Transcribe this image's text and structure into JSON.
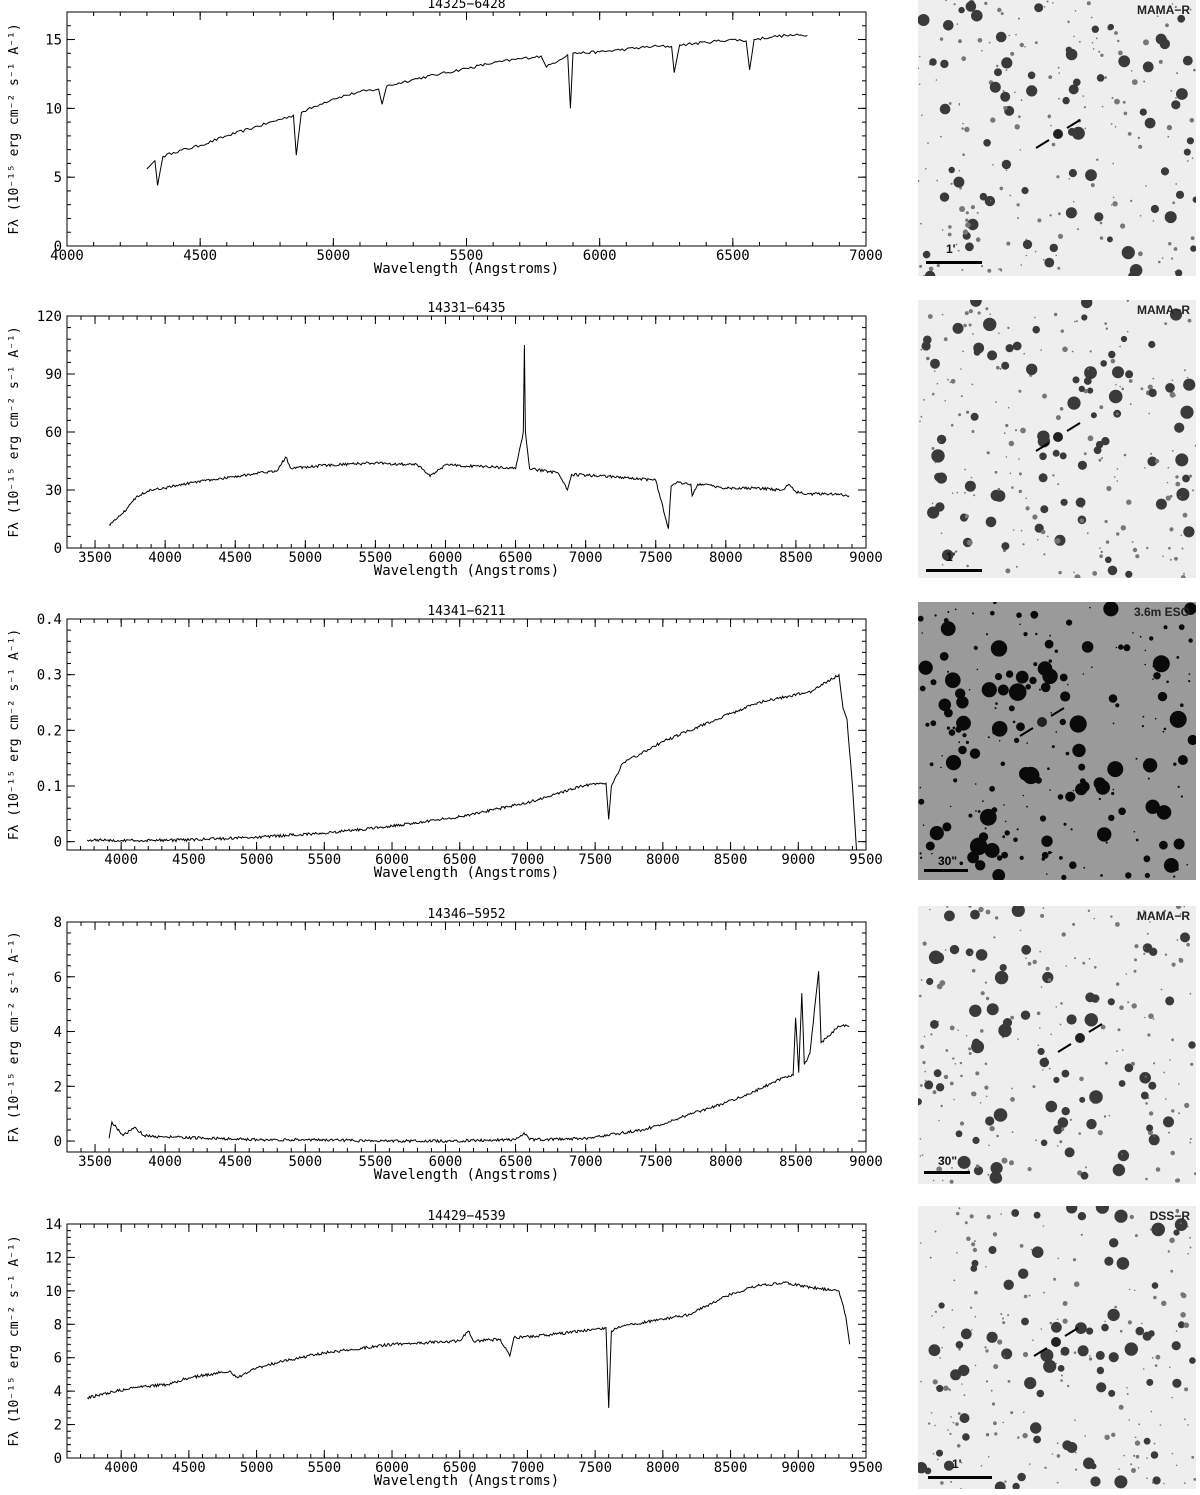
{
  "chart_data": [
    {
      "type": "line",
      "title": "14325−6428",
      "xlabel": "Wavelength (Angstroms)",
      "ylabel": "Fλ (10⁻¹⁵ erg cm⁻² s⁻¹ A⁻¹)",
      "xlim": [
        4000,
        7000
      ],
      "ylim": [
        0,
        17
      ],
      "xticks": [
        4000,
        4500,
        5000,
        5500,
        6000,
        6500,
        7000
      ],
      "yticks": [
        0,
        5,
        10,
        15
      ],
      "series": [
        {
          "x": [
            4300,
            4330,
            4340,
            4360,
            4400,
            4500,
            4600,
            4700,
            4800,
            4850,
            4861,
            4880,
            4950,
            5000,
            5100,
            5170,
            5183,
            5200,
            5300,
            5400,
            5500,
            5600,
            5700,
            5780,
            5800,
            5880,
            5890,
            5900,
            6000,
            6100,
            6200,
            6270,
            6280,
            6300,
            6400,
            6500,
            6550,
            6563,
            6580,
            6650,
            6700,
            6780
          ],
          "y": [
            5.6,
            6.2,
            4.4,
            6.5,
            6.8,
            7.3,
            8.0,
            8.6,
            9.2,
            9.5,
            6.6,
            9.7,
            10.3,
            10.7,
            11.2,
            11.4,
            10.3,
            11.6,
            12.1,
            12.5,
            12.9,
            13.3,
            13.6,
            13.8,
            13.0,
            13.9,
            10.0,
            14.0,
            14.1,
            14.3,
            14.5,
            14.5,
            12.6,
            14.6,
            14.8,
            15.0,
            14.9,
            12.8,
            15.0,
            15.2,
            15.3,
            15.3
          ]
        }
      ]
    },
    {
      "type": "line",
      "title": "14331−6435",
      "xlabel": "Wavelength (Angstroms)",
      "ylabel": "Fλ (10⁻¹⁵ erg cm⁻² s⁻¹ A⁻¹)",
      "xlim": [
        3300,
        9000
      ],
      "ylim": [
        0,
        120
      ],
      "xticks": [
        3500,
        4000,
        4500,
        5000,
        5500,
        6000,
        6500,
        7000,
        7500,
        8000,
        8500,
        9000
      ],
      "yticks": [
        0,
        30,
        60,
        90,
        120
      ],
      "series": [
        {
          "x": [
            3600,
            3700,
            3800,
            3900,
            4000,
            4200,
            4400,
            4600,
            4800,
            4861,
            4900,
            5000,
            5200,
            5500,
            5800,
            5890,
            6000,
            6300,
            6500,
            6555,
            6563,
            6570,
            6600,
            6800,
            6870,
            6900,
            7200,
            7500,
            7590,
            7610,
            7650,
            7750,
            7760,
            7800,
            8000,
            8200,
            8400,
            8450,
            8500,
            8600,
            8800,
            8880
          ],
          "y": [
            12,
            18,
            27,
            30,
            31,
            34,
            36,
            38,
            40,
            47,
            41,
            42,
            43,
            44,
            43,
            37,
            43,
            42,
            41,
            60,
            105,
            60,
            41,
            39,
            30,
            38,
            37,
            35,
            10,
            32,
            34,
            33,
            27,
            33,
            31,
            31,
            30,
            33,
            29,
            28,
            28,
            27
          ]
        }
      ]
    },
    {
      "type": "line",
      "title": "14341−6211",
      "xlabel": "Wavelength (Angstroms)",
      "ylabel": "Fλ (10⁻¹⁵ erg cm⁻² s⁻¹ A⁻¹)",
      "xlim": [
        3600,
        9500
      ],
      "ylim": [
        -0.015,
        0.4
      ],
      "xticks": [
        4000,
        4500,
        5000,
        5500,
        6000,
        6500,
        7000,
        7500,
        8000,
        8500,
        9000,
        9500
      ],
      "yticks": [
        0,
        0.1,
        0.2,
        0.3,
        0.4
      ],
      "series": [
        {
          "x": [
            3750,
            4000,
            4500,
            5000,
            5500,
            6000,
            6500,
            7000,
            7400,
            7580,
            7600,
            7620,
            7700,
            8000,
            8500,
            8700,
            8900,
            9100,
            9300,
            9330,
            9360,
            9400,
            9430
          ],
          "y": [
            0.003,
            0.002,
            0.003,
            0.008,
            0.015,
            0.028,
            0.045,
            0.07,
            0.1,
            0.105,
            0.04,
            0.1,
            0.14,
            0.18,
            0.23,
            0.25,
            0.26,
            0.27,
            0.3,
            0.24,
            0.22,
            0.1,
            -0.015
          ]
        }
      ]
    },
    {
      "type": "line",
      "title": "14346−5952",
      "xlabel": "Wavelength (Angstroms)",
      "ylabel": "Fλ (10⁻¹⁵ erg cm⁻² s⁻¹ A⁻¹)",
      "xlim": [
        3300,
        9000
      ],
      "ylim": [
        -0.4,
        8
      ],
      "xticks": [
        3500,
        4000,
        4500,
        5000,
        5500,
        6000,
        6500,
        7000,
        7500,
        8000,
        8500,
        9000
      ],
      "yticks": [
        0,
        2,
        4,
        6,
        8
      ],
      "series": [
        {
          "x": [
            3600,
            3620,
            3700,
            3780,
            3850,
            4000,
            4300,
            4700,
            5000,
            5500,
            6000,
            6500,
            6560,
            6600,
            7000,
            7400,
            7600,
            7700,
            8000,
            8200,
            8400,
            8480,
            8498,
            8520,
            8542,
            8560,
            8600,
            8662,
            8680,
            8750,
            8800,
            8880
          ],
          "y": [
            0.1,
            0.7,
            0.2,
            0.5,
            0.2,
            0.15,
            0.1,
            0.05,
            0.05,
            0.0,
            0.0,
            0.05,
            0.3,
            0.05,
            0.1,
            0.4,
            0.7,
            0.9,
            1.4,
            1.8,
            2.3,
            2.4,
            4.5,
            2.5,
            5.4,
            2.8,
            3.2,
            6.2,
            3.6,
            3.9,
            4.2,
            4.2
          ]
        }
      ]
    },
    {
      "type": "line",
      "title": "14429−4539",
      "xlabel": "Wavelength (Angstroms)",
      "ylabel": "Fλ (10⁻¹⁵ erg cm⁻² s⁻¹ A⁻¹)",
      "xlim": [
        3600,
        9500
      ],
      "ylim": [
        0,
        14
      ],
      "xticks": [
        4000,
        4500,
        5000,
        5500,
        6000,
        6500,
        7000,
        7500,
        8000,
        8500,
        9000,
        9500
      ],
      "yticks": [
        0,
        2,
        4,
        6,
        8,
        10,
        12,
        14
      ],
      "series": [
        {
          "x": [
            3750,
            3900,
            4100,
            4340,
            4500,
            4800,
            4861,
            5000,
            5200,
            5500,
            6000,
            6500,
            6563,
            6600,
            6800,
            6870,
            6900,
            7200,
            7500,
            7580,
            7600,
            7620,
            7700,
            8000,
            8200,
            8500,
            8700,
            8900,
            9100,
            9300,
            9350,
            9380
          ],
          "y": [
            3.6,
            3.9,
            4.2,
            4.4,
            4.8,
            5.2,
            4.8,
            5.4,
            5.8,
            6.3,
            6.8,
            7.0,
            7.6,
            7.0,
            7.1,
            6.1,
            7.2,
            7.4,
            7.7,
            7.8,
            3.0,
            7.6,
            7.9,
            8.3,
            8.6,
            9.8,
            10.3,
            10.5,
            10.2,
            10.0,
            8.5,
            6.8
          ]
        }
      ]
    }
  ],
  "finders": [
    {
      "label": "MAMA−R",
      "scale": "1'",
      "style": "light"
    },
    {
      "label": "MAMA−R",
      "scale": "1'",
      "style": "light"
    },
    {
      "label": "3.6m ESO",
      "scale": "30\"",
      "style": "dark"
    },
    {
      "label": "MAMA−R",
      "scale": "30\"",
      "style": "light"
    },
    {
      "label": "DSS−R",
      "scale": "1'",
      "style": "light"
    }
  ]
}
